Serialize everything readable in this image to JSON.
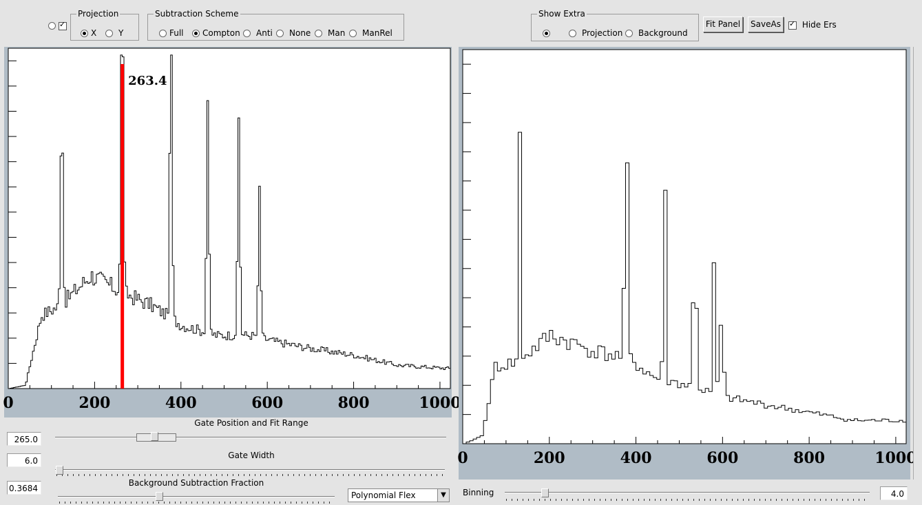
{
  "toolbar": {
    "projection": {
      "legend": "Projection",
      "options": [
        "X",
        "Y"
      ],
      "selected": "X"
    },
    "subtraction": {
      "legend": "Subtraction Scheme",
      "options": [
        "Full",
        "Compton",
        "Anti",
        "None",
        "Man",
        "ManRel"
      ],
      "selected": "Compton"
    },
    "show_extra": {
      "legend": "Show Extra",
      "options": [
        "",
        "Projection",
        "Background"
      ],
      "selected": ""
    },
    "fit_panel_label": "Fit Panel",
    "save_as_label": "SaveAs",
    "hide_ers_label": "Hide Ers",
    "hide_ers_checked": true
  },
  "controls": {
    "gate_position": {
      "label": "Gate Position and Fit Range",
      "value": "265.0"
    },
    "gate_width": {
      "label": "Gate Width",
      "value": "6.0"
    },
    "bg_fraction": {
      "label": "Background Subtraction Fraction",
      "value": "0.3684"
    },
    "fit_function": "Polynomial Flex",
    "binning": {
      "label": "Binning",
      "value": "4.0"
    }
  },
  "chart_data": [
    {
      "type": "line",
      "name": "left-spectrum",
      "xlim": [
        0,
        1024
      ],
      "xticks": [
        "0",
        "200",
        "400",
        "600",
        "800",
        "1000"
      ],
      "gate_marker": {
        "x": 265,
        "label": "263.4",
        "color": "#ff0000"
      },
      "peaks": [
        [
          122,
          0.62
        ],
        [
          262,
          0.96
        ],
        [
          375,
          0.9
        ],
        [
          460,
          0.7
        ],
        [
          532,
          0.65
        ],
        [
          580,
          0.45
        ]
      ],
      "continuum": [
        [
          0,
          0
        ],
        [
          38,
          0.01
        ],
        [
          75,
          0.22
        ],
        [
          120,
          0.25
        ],
        [
          190,
          0.34
        ],
        [
          260,
          0.29
        ],
        [
          330,
          0.25
        ],
        [
          400,
          0.19
        ],
        [
          480,
          0.16
        ],
        [
          560,
          0.16
        ],
        [
          620,
          0.14
        ],
        [
          700,
          0.12
        ],
        [
          800,
          0.1
        ],
        [
          900,
          0.07
        ],
        [
          1024,
          0.06
        ]
      ]
    },
    {
      "type": "line",
      "name": "right-spectrum",
      "xlim": [
        0,
        1024
      ],
      "xticks": [
        "0",
        "200",
        "400",
        "600",
        "800",
        "1000"
      ],
      "peaks": [
        [
          128,
          0.58
        ],
        [
          373,
          0.95
        ],
        [
          462,
          0.64
        ],
        [
          532,
          0.67
        ],
        [
          578,
          0.44
        ],
        [
          595,
          0.34
        ]
      ],
      "continuum": [
        [
          0,
          0
        ],
        [
          40,
          0.02
        ],
        [
          72,
          0.2
        ],
        [
          120,
          0.21
        ],
        [
          200,
          0.28
        ],
        [
          300,
          0.24
        ],
        [
          380,
          0.22
        ],
        [
          440,
          0.17
        ],
        [
          520,
          0.15
        ],
        [
          600,
          0.12
        ],
        [
          700,
          0.1
        ],
        [
          800,
          0.08
        ],
        [
          900,
          0.06
        ],
        [
          1024,
          0.06
        ]
      ]
    }
  ]
}
